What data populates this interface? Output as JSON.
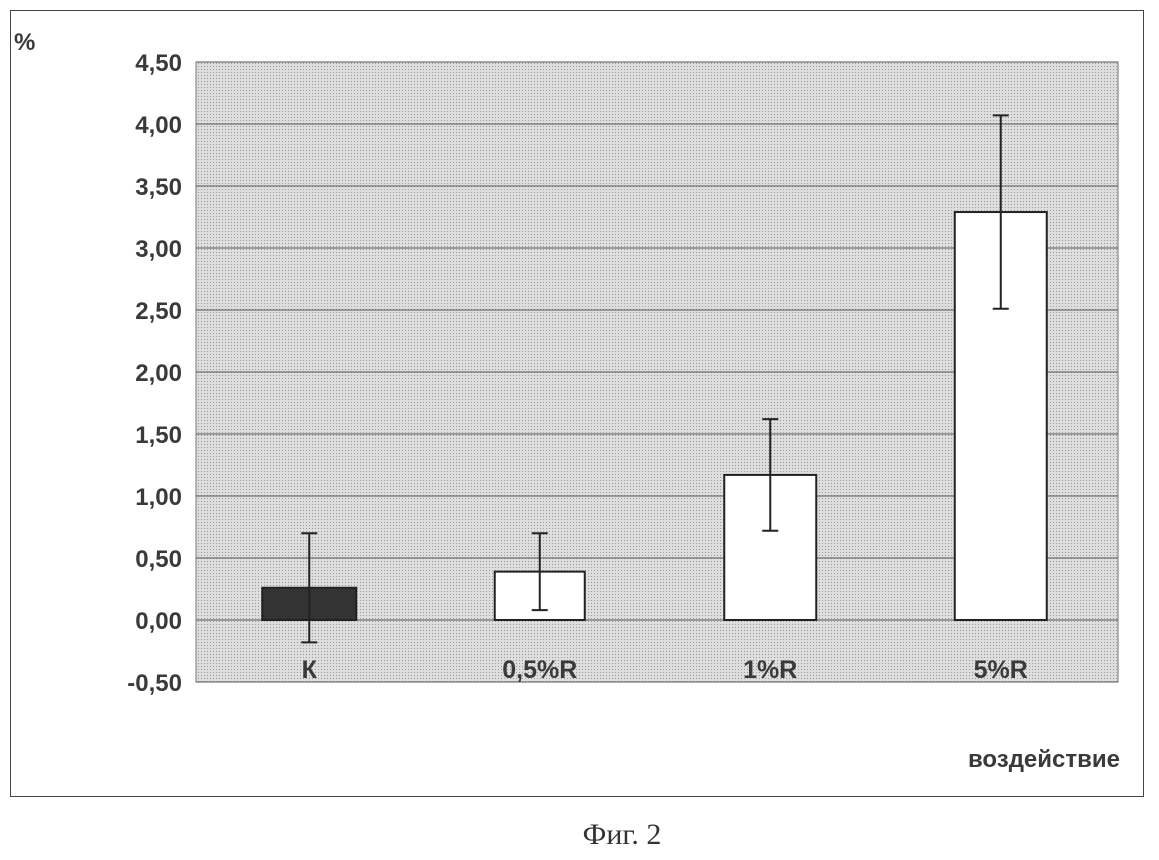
{
  "caption": "Фиг. 2",
  "chart_data": {
    "type": "bar",
    "title": "",
    "ylabel": "%",
    "xlabel": "воздействие",
    "ylim": [
      -0.5,
      4.5
    ],
    "y_ticks": [
      "4,50",
      "4,00",
      "3,50",
      "3,00",
      "2,50",
      "2,00",
      "1,50",
      "1,00",
      "0,50",
      "0,00",
      "-0,50"
    ],
    "y_tick_values": [
      4.5,
      4.0,
      3.5,
      3.0,
      2.5,
      2.0,
      1.5,
      1.0,
      0.5,
      0.0,
      -0.5
    ],
    "grid": "horizontal",
    "categories": [
      "К",
      "0,5%R",
      "1%R",
      "5%R"
    ],
    "values": [
      0.26,
      0.39,
      1.17,
      3.29
    ],
    "errors": [
      0.44,
      0.31,
      0.45,
      0.78
    ],
    "bar_colors": [
      "#333333",
      "#ffffff",
      "#ffffff",
      "#ffffff"
    ],
    "plot_background": "#d9d9d9"
  }
}
